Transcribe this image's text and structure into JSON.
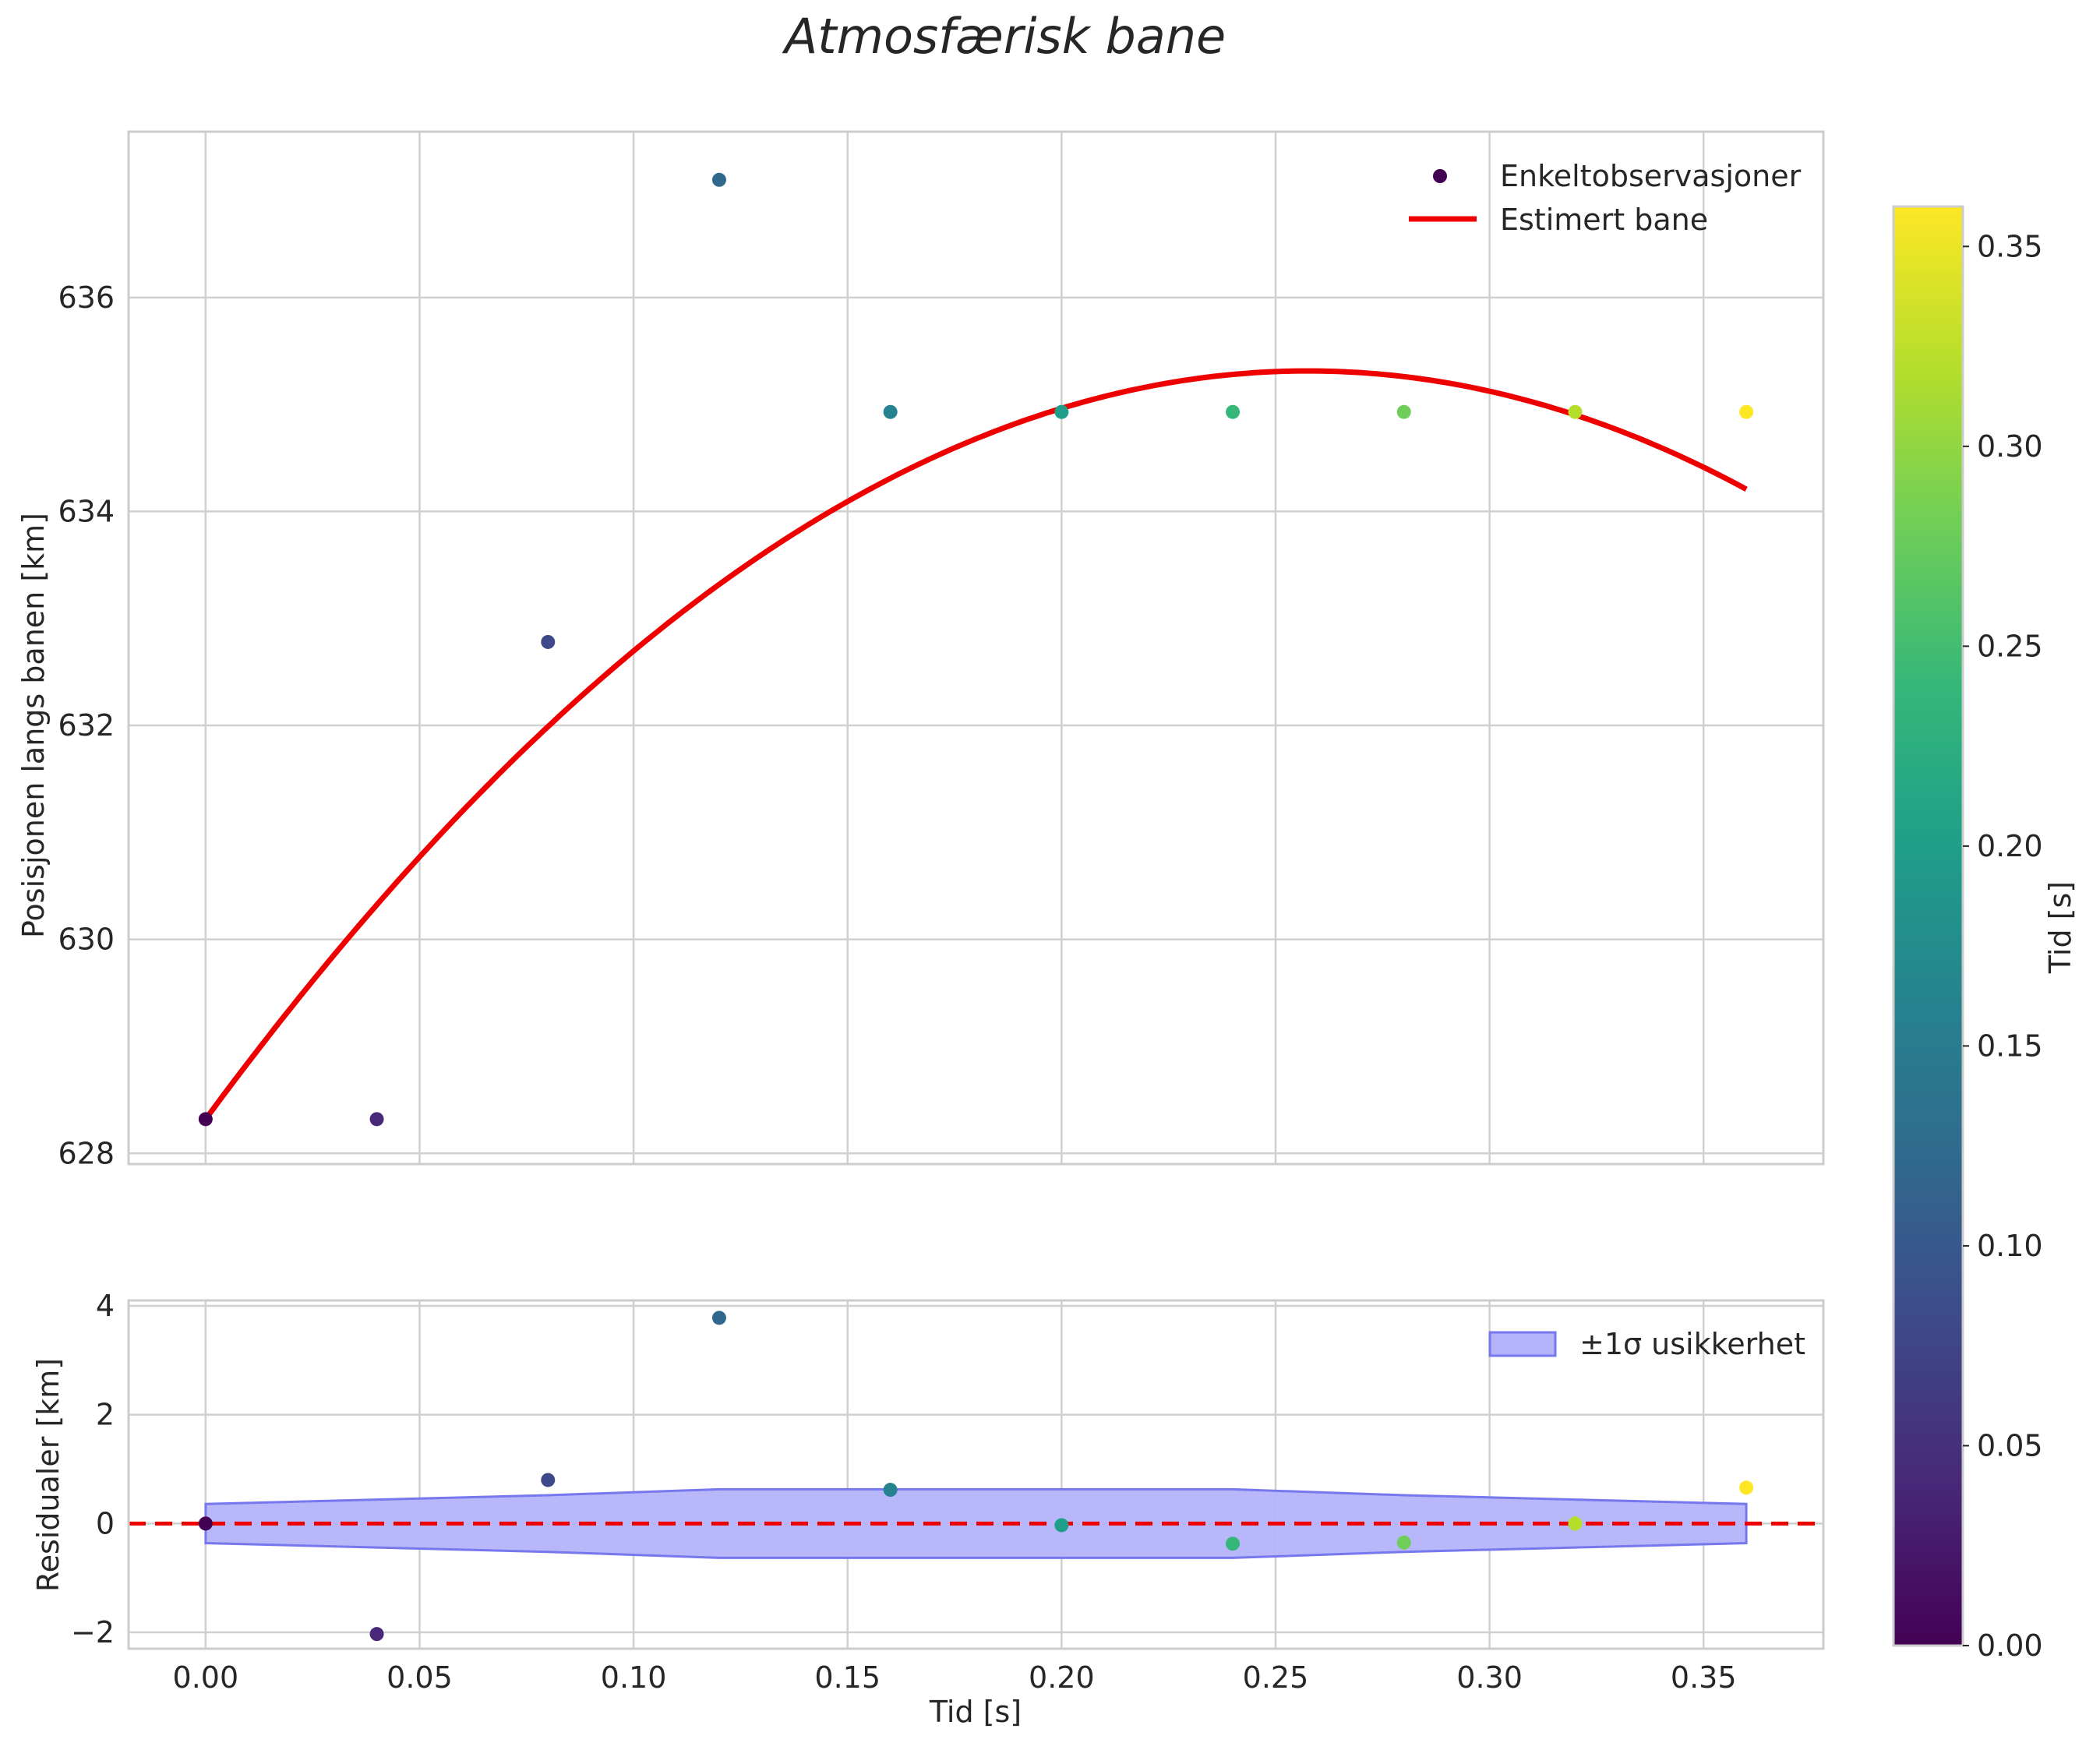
{
  "chart_data": [
    {
      "type": "scatter",
      "panel": "main",
      "title": "Atmosfærisk bane",
      "xlabel": "",
      "ylabel": "Posisjonen langs banen [km]",
      "xlim": [
        -0.018,
        0.378
      ],
      "ylim": [
        627.9,
        637.55
      ],
      "xticks": [
        0.0,
        0.05,
        0.1,
        0.15,
        0.2,
        0.25,
        0.3,
        0.35
      ],
      "yticks": [
        628,
        630,
        632,
        634,
        636
      ],
      "ytick_labels": [
        "628",
        "630",
        "632",
        "634",
        "636"
      ],
      "grid": true,
      "legend": "top-right",
      "series": [
        {
          "name": "Enkeltobservasjoner",
          "kind": "scatter",
          "x": [
            0.0,
            0.04,
            0.08,
            0.12,
            0.16,
            0.2,
            0.24,
            0.28,
            0.32,
            0.36
          ],
          "y": [
            628.32,
            628.32,
            632.78,
            637.1,
            634.93,
            634.93,
            634.93,
            634.93,
            634.93,
            634.93
          ]
        },
        {
          "name": "Estimert bane",
          "kind": "line",
          "color": "#ee0000",
          "model": "quadratic",
          "coefficients": {
            "c0": 628.32,
            "c1": 54.3,
            "c2": -105.4
          },
          "x_range": [
            0.0,
            0.36
          ]
        }
      ]
    },
    {
      "type": "scatter",
      "panel": "residuals",
      "xlabel": "Tid [s]",
      "ylabel": "Residualer [km]",
      "xlim": [
        -0.018,
        0.378
      ],
      "ylim": [
        -2.3,
        4.1
      ],
      "xticks": [
        0.0,
        0.05,
        0.1,
        0.15,
        0.2,
        0.25,
        0.3,
        0.35
      ],
      "xtick_labels": [
        "0.00",
        "0.05",
        "0.10",
        "0.15",
        "0.20",
        "0.25",
        "0.30",
        "0.35"
      ],
      "yticks": [
        -2,
        0,
        2,
        4
      ],
      "ytick_labels": [
        "−2",
        "0",
        "2",
        "4"
      ],
      "grid": true,
      "legend": "top-right",
      "reference_line": {
        "y": 0,
        "color": "#ee0000",
        "style": "dashed"
      },
      "series": [
        {
          "name": "Residualer",
          "kind": "scatter",
          "x": [
            0.0,
            0.04,
            0.08,
            0.12,
            0.16,
            0.2,
            0.24,
            0.28,
            0.32,
            0.36
          ],
          "y": [
            0.0,
            -2.03,
            0.8,
            3.78,
            0.62,
            -0.03,
            -0.37,
            -0.35,
            0.0,
            0.66
          ]
        },
        {
          "name": "±1σ usikkerhet",
          "kind": "band",
          "color": "#0000ff",
          "x": [
            0.0,
            0.04,
            0.08,
            0.12,
            0.16,
            0.2,
            0.24,
            0.28,
            0.32,
            0.36
          ],
          "sigma": [
            0.36,
            0.44,
            0.52,
            0.63,
            0.63,
            0.63,
            0.63,
            0.52,
            0.44,
            0.36
          ]
        }
      ]
    },
    {
      "type": "colorbar",
      "label": "Tid [s]",
      "colormap": "viridis",
      "range": [
        0.0,
        0.36
      ],
      "ticks": [
        0.0,
        0.05,
        0.1,
        0.15,
        0.2,
        0.25,
        0.3,
        0.35
      ],
      "tick_labels": [
        "0.00",
        "0.05",
        "0.10",
        "0.15",
        "0.20",
        "0.25",
        "0.30",
        "0.35"
      ],
      "stops": [
        "#440154",
        "#482878",
        "#3e4989",
        "#31688e",
        "#26828e",
        "#1f9e89",
        "#35b779",
        "#6ece58",
        "#b5de2b",
        "#fde725"
      ]
    }
  ],
  "colors": {
    "fit_line": "#ee0000",
    "band_fill": "#b3b3fa",
    "band_edge": "#7777ee",
    "grid": "#d0d0d0",
    "spine": "#cccccc"
  }
}
